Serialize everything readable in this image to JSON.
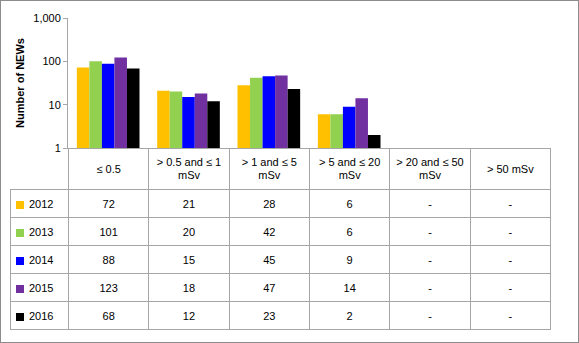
{
  "chart_data": {
    "type": "bar",
    "ylabel": "Number of NEWs",
    "categories": [
      "≤ 0.5",
      "> 0.5 and ≤ 1 mSv",
      "> 1 and ≤ 5 mSv",
      "> 5 and ≤ 20 mSv",
      "> 20 and ≤ 50 mSv",
      "> 50 mSv"
    ],
    "series": [
      {
        "name": "2012",
        "color": "#FFC000",
        "values": [
          72,
          21,
          28,
          6,
          null,
          null
        ],
        "value_labels": [
          "72",
          "21",
          "28",
          "6",
          "-",
          "-"
        ]
      },
      {
        "name": "2013",
        "color": "#92D050",
        "values": [
          101,
          20,
          42,
          6,
          null,
          null
        ],
        "value_labels": [
          "101",
          "20",
          "42",
          "6",
          "-",
          "-"
        ]
      },
      {
        "name": "2014",
        "color": "#0000FF",
        "values": [
          88,
          15,
          45,
          9,
          null,
          null
        ],
        "value_labels": [
          "88",
          "15",
          "45",
          "9",
          "-",
          "-"
        ]
      },
      {
        "name": "2015",
        "color": "#7030A0",
        "values": [
          123,
          18,
          47,
          14,
          null,
          null
        ],
        "value_labels": [
          "123",
          "18",
          "47",
          "14",
          "-",
          "-"
        ]
      },
      {
        "name": "2016",
        "color": "#000000",
        "values": [
          68,
          12,
          23,
          2,
          null,
          null
        ],
        "value_labels": [
          "68",
          "12",
          "23",
          "2",
          "-",
          "-"
        ]
      }
    ],
    "ylim": [
      1,
      1000
    ],
    "yticks": [
      1,
      10,
      100,
      {
        "value": 1000,
        "label": "1,000"
      }
    ],
    "log": "y",
    "grid": false,
    "tick_labels": "y"
  }
}
